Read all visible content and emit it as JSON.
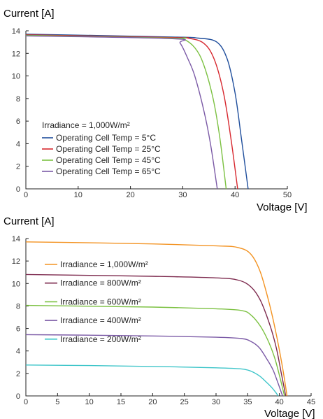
{
  "chart_data": [
    {
      "type": "line",
      "ylabel": "Current [A]",
      "xlabel": "Voltage [V]",
      "xlim": [
        0,
        50
      ],
      "ylim": [
        0,
        14
      ],
      "xticks": [
        0,
        10,
        20,
        30,
        40,
        50
      ],
      "yticks": [
        0,
        2,
        4,
        6,
        8,
        10,
        12,
        14
      ],
      "legend_title": "Irradiance = 1,000W/m²",
      "legend_position": "bottom-left",
      "series": [
        {
          "name": "Operating Cell Temp = 5°C",
          "color": "#1f4e9c",
          "x": [
            0,
            28,
            33,
            36.5,
            38.5,
            40,
            41.2,
            42.5
          ],
          "y": [
            13.7,
            13.45,
            13.35,
            13.0,
            11.5,
            8.5,
            4.5,
            0
          ]
        },
        {
          "name": "Operating Cell Temp = 25°C",
          "color": "#d7282f",
          "x": [
            0,
            28,
            31,
            34,
            36,
            37.8,
            39.2,
            40.5
          ],
          "y": [
            13.65,
            13.4,
            13.35,
            12.9,
            11.5,
            8.5,
            4.5,
            0
          ]
        },
        {
          "name": "Operating Cell Temp = 45°C",
          "color": "#7cc142",
          "x": [
            0,
            28,
            30,
            32.3,
            34,
            35.8,
            37.1,
            38.3
          ],
          "y": [
            13.6,
            13.35,
            13.3,
            12.5,
            11.0,
            8.0,
            4.5,
            0
          ]
        },
        {
          "name": "Operating Cell Temp = 65°C",
          "color": "#7b5aa6",
          "x": [
            0,
            28,
            29.5,
            31,
            32.3,
            34,
            35.3,
            36.6
          ],
          "y": [
            13.55,
            13.3,
            12.9,
            11.5,
            10.0,
            7.0,
            4.0,
            0
          ]
        }
      ]
    },
    {
      "type": "line",
      "ylabel": "Current [A]",
      "xlabel": "Voltage [V]",
      "xlim": [
        0,
        45
      ],
      "ylim": [
        0,
        14
      ],
      "xticks": [
        0,
        5,
        10,
        15,
        20,
        25,
        30,
        35,
        40,
        45
      ],
      "yticks": [
        0,
        2,
        4,
        6,
        8,
        10,
        12,
        14
      ],
      "legend_position": "left",
      "series": [
        {
          "name": "Irradiance = 1,000W/m²",
          "color": "#f39322",
          "x": [
            0,
            10,
            20,
            30,
            33.5,
            35.5,
            37,
            38.5,
            39.5,
            40.5,
            41.2
          ],
          "y": [
            13.7,
            13.62,
            13.52,
            13.35,
            13.2,
            12.6,
            11.0,
            8.0,
            5.5,
            2.5,
            0
          ]
        },
        {
          "name": "Irradiance = 800W/m²",
          "color": "#7d2a4e",
          "x": [
            0,
            10,
            20,
            30,
            33.5,
            35.5,
            37,
            38.5,
            39.5,
            40.3,
            41.0
          ],
          "y": [
            10.8,
            10.72,
            10.64,
            10.5,
            10.3,
            9.7,
            8.5,
            6.3,
            4.3,
            2.0,
            0
          ]
        },
        {
          "name": "Irradiance = 600W/m²",
          "color": "#7cc142",
          "x": [
            0,
            10,
            20,
            30,
            34,
            35.5,
            37,
            38.3,
            39.3,
            40.1,
            40.8
          ],
          "y": [
            8.05,
            7.98,
            7.9,
            7.75,
            7.6,
            7.2,
            6.2,
            4.8,
            3.3,
            1.6,
            0
          ]
        },
        {
          "name": "Irradiance = 400W/m²",
          "color": "#7b5aa6",
          "x": [
            0,
            10,
            20,
            30,
            34,
            35.5,
            36.8,
            38.0,
            39.0,
            39.8,
            40.5
          ],
          "y": [
            5.45,
            5.4,
            5.33,
            5.22,
            5.1,
            4.85,
            4.3,
            3.3,
            2.3,
            1.1,
            0
          ]
        },
        {
          "name": "Irradiance = 200W/m²",
          "color": "#3ec5c9",
          "x": [
            0,
            10,
            20,
            30,
            34,
            35.5,
            36.8,
            37.8,
            38.7,
            39.3,
            39.8
          ],
          "y": [
            2.75,
            2.7,
            2.62,
            2.5,
            2.4,
            2.2,
            1.8,
            1.3,
            0.8,
            0.4,
            0
          ]
        }
      ]
    }
  ]
}
